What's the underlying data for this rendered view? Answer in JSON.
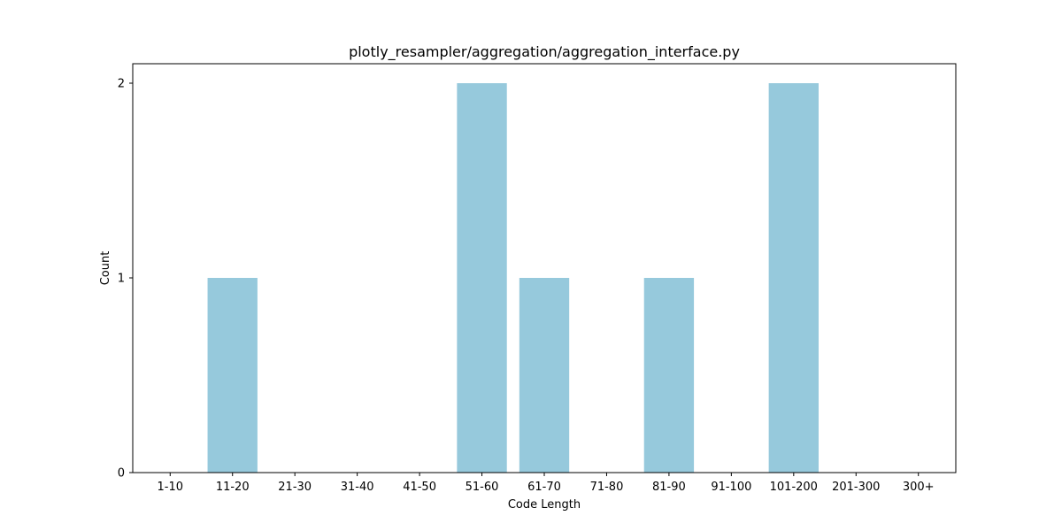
{
  "chart_data": {
    "type": "bar",
    "title": "plotly_resampler/aggregation/aggregation_interface.py",
    "xlabel": "Code Length",
    "ylabel": "Count",
    "categories": [
      "1-10",
      "11-20",
      "21-30",
      "31-40",
      "41-50",
      "51-60",
      "61-70",
      "71-80",
      "81-90",
      "91-100",
      "101-200",
      "201-300",
      "300+"
    ],
    "values": [
      0,
      1,
      0,
      0,
      0,
      2,
      1,
      0,
      1,
      0,
      2,
      0,
      0
    ],
    "ylim": [
      0,
      2.1
    ],
    "yticks": [
      "0",
      "1",
      "2"
    ],
    "grid": false,
    "bar_color": "#96c9dc"
  }
}
